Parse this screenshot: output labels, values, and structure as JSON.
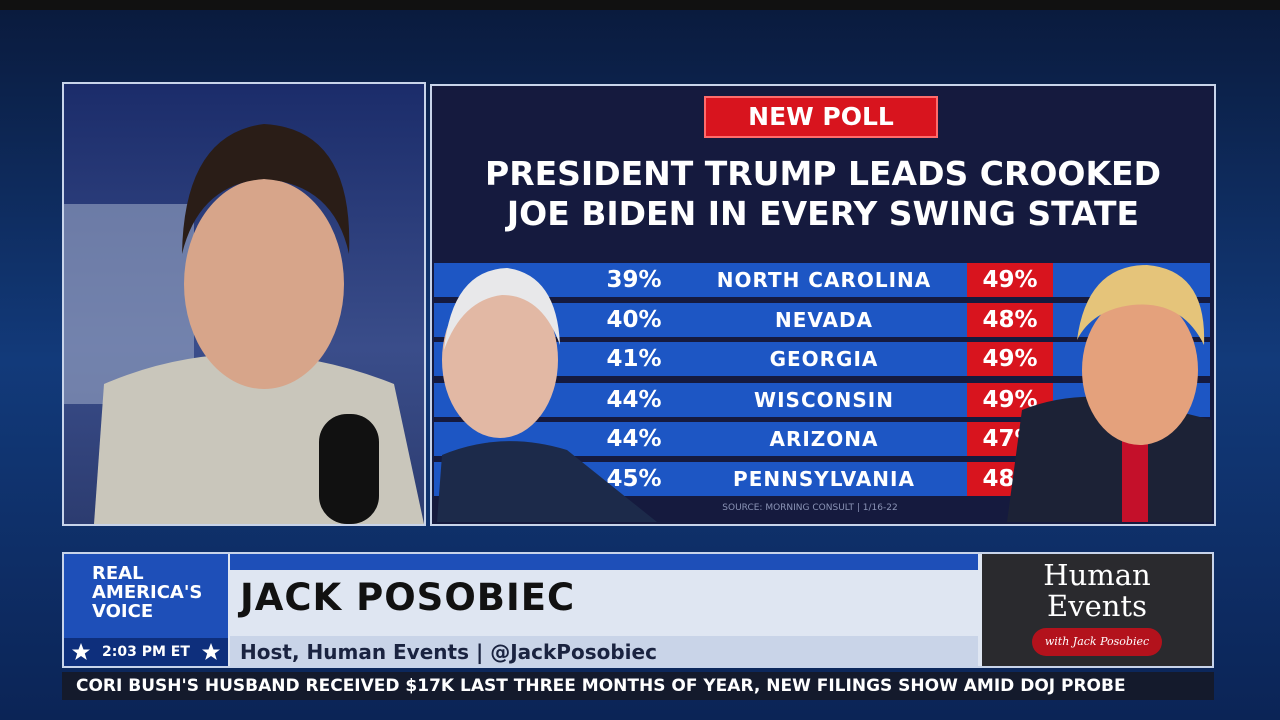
{
  "poll": {
    "badge": "NEW POLL",
    "title_lines": [
      "PRESIDENT TRUMP LEADS CROOKED",
      "JOE BIDEN IN EVERY SWING STATE"
    ],
    "rows": [
      [
        "39%",
        "NORTH CAROLINA",
        "49%"
      ],
      [
        "40%",
        "NEVADA",
        "48%"
      ],
      [
        "41%",
        "GEORGIA",
        "49%"
      ],
      [
        "44%",
        "WISCONSIN",
        "49%"
      ],
      [
        "44%",
        "ARIZONA",
        "47%"
      ],
      [
        "45%",
        "PENNSYLVANIA",
        "48%"
      ]
    ],
    "source": "SOURCE: MORNING CONSULT | 1/16-22"
  },
  "lower_third": {
    "network_lines": [
      "REAL",
      "AMERICA'S",
      "VOICE"
    ],
    "clock": "2:03 PM ET",
    "name": "JACK POSOBIEC",
    "subtitle": "Host, Human Events | @JackPosobiec",
    "show_lines": [
      "Human",
      "Events"
    ],
    "show_tag": "with Jack Posobiec"
  },
  "ticker": "CORI BUSH'S HUSBAND RECEIVED $17K LAST THREE MONTHS OF YEAR, NEW FILINGS SHOW AMID DOJ PROBE"
}
